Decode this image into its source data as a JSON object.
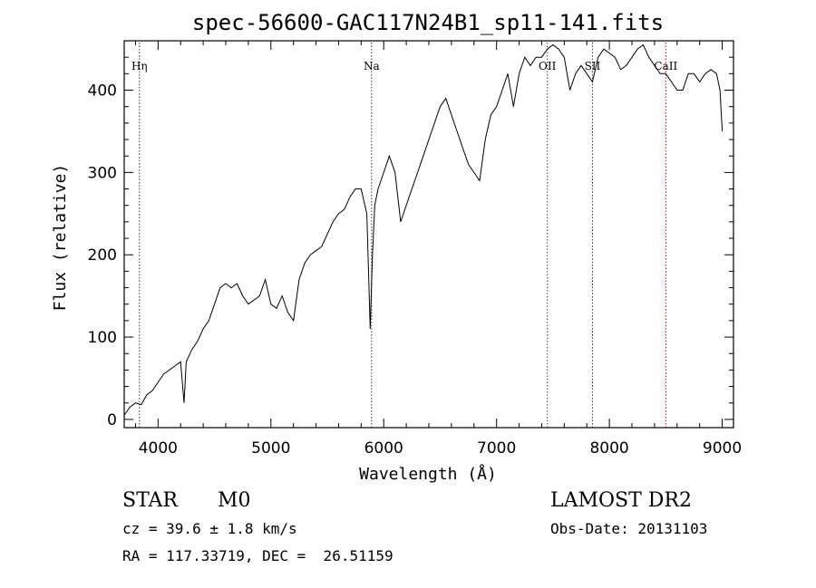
{
  "chart_data": {
    "type": "line",
    "title": "spec-56600-GAC117N24B1_sp11-141.fits",
    "xlabel": "Wavelength (Å)",
    "ylabel": "Flux (relative)",
    "xlim": [
      3700,
      9100
    ],
    "ylim": [
      -10,
      460
    ],
    "x_ticks": [
      4000,
      5000,
      6000,
      7000,
      8000,
      9000
    ],
    "y_ticks": [
      0,
      100,
      200,
      300,
      400
    ],
    "grid": false,
    "series": [
      {
        "x": [
          3700,
          3750,
          3800,
          3850,
          3900,
          3950,
          4000,
          4050,
          4100,
          4150,
          4200,
          4230,
          4250,
          4300,
          4350,
          4400,
          4450,
          4500,
          4550,
          4600,
          4650,
          4700,
          4750,
          4800,
          4850,
          4900,
          4950,
          5000,
          5050,
          5100,
          5150,
          5200,
          5250,
          5300,
          5350,
          5400,
          5450,
          5500,
          5550,
          5600,
          5650,
          5700,
          5750,
          5800,
          5850,
          5880,
          5900,
          5920,
          5950,
          6000,
          6050,
          6100,
          6150,
          6200,
          6250,
          6300,
          6350,
          6400,
          6450,
          6500,
          6550,
          6600,
          6650,
          6700,
          6750,
          6800,
          6850,
          6900,
          6950,
          7000,
          7050,
          7100,
          7150,
          7200,
          7250,
          7300,
          7350,
          7400,
          7450,
          7500,
          7550,
          7600,
          7650,
          7700,
          7750,
          7800,
          7850,
          7900,
          7950,
          8000,
          8050,
          8100,
          8150,
          8200,
          8250,
          8300,
          8350,
          8400,
          8450,
          8500,
          8550,
          8600,
          8650,
          8700,
          8750,
          8800,
          8850,
          8900,
          8950,
          8980,
          9000
        ],
        "y": [
          5,
          15,
          20,
          18,
          30,
          35,
          45,
          55,
          60,
          65,
          70,
          20,
          70,
          85,
          95,
          110,
          120,
          140,
          160,
          165,
          160,
          165,
          150,
          140,
          145,
          150,
          170,
          140,
          135,
          150,
          130,
          120,
          170,
          190,
          200,
          205,
          210,
          225,
          240,
          250,
          255,
          270,
          280,
          280,
          250,
          110,
          200,
          260,
          280,
          300,
          320,
          300,
          240,
          260,
          280,
          300,
          320,
          340,
          360,
          380,
          390,
          370,
          350,
          330,
          310,
          300,
          290,
          340,
          370,
          380,
          400,
          420,
          380,
          420,
          440,
          430,
          440,
          440,
          450,
          455,
          450,
          440,
          400,
          420,
          430,
          420,
          410,
          440,
          450,
          445,
          440,
          425,
          430,
          440,
          450,
          455,
          440,
          430,
          420,
          420,
          410,
          400,
          400,
          420,
          420,
          410,
          420,
          425,
          420,
          400,
          350
        ]
      }
    ],
    "spectral_lines": [
      {
        "label": "Hη",
        "x": 3835
      },
      {
        "label": "Na",
        "x": 5892
      },
      {
        "label": "OII",
        "x": 7450
      },
      {
        "label": "SII",
        "x": 7850
      },
      {
        "label": "CaII",
        "x": 8500
      }
    ]
  },
  "info": {
    "object_class": "STAR",
    "subclass": "M0",
    "survey": "LAMOST DR2",
    "cz": "cz = 39.6 ± 1.8 km/s",
    "obs_date": "Obs-Date: 20131103",
    "coords": "RA = 117.33719, DEC =  26.51159"
  }
}
